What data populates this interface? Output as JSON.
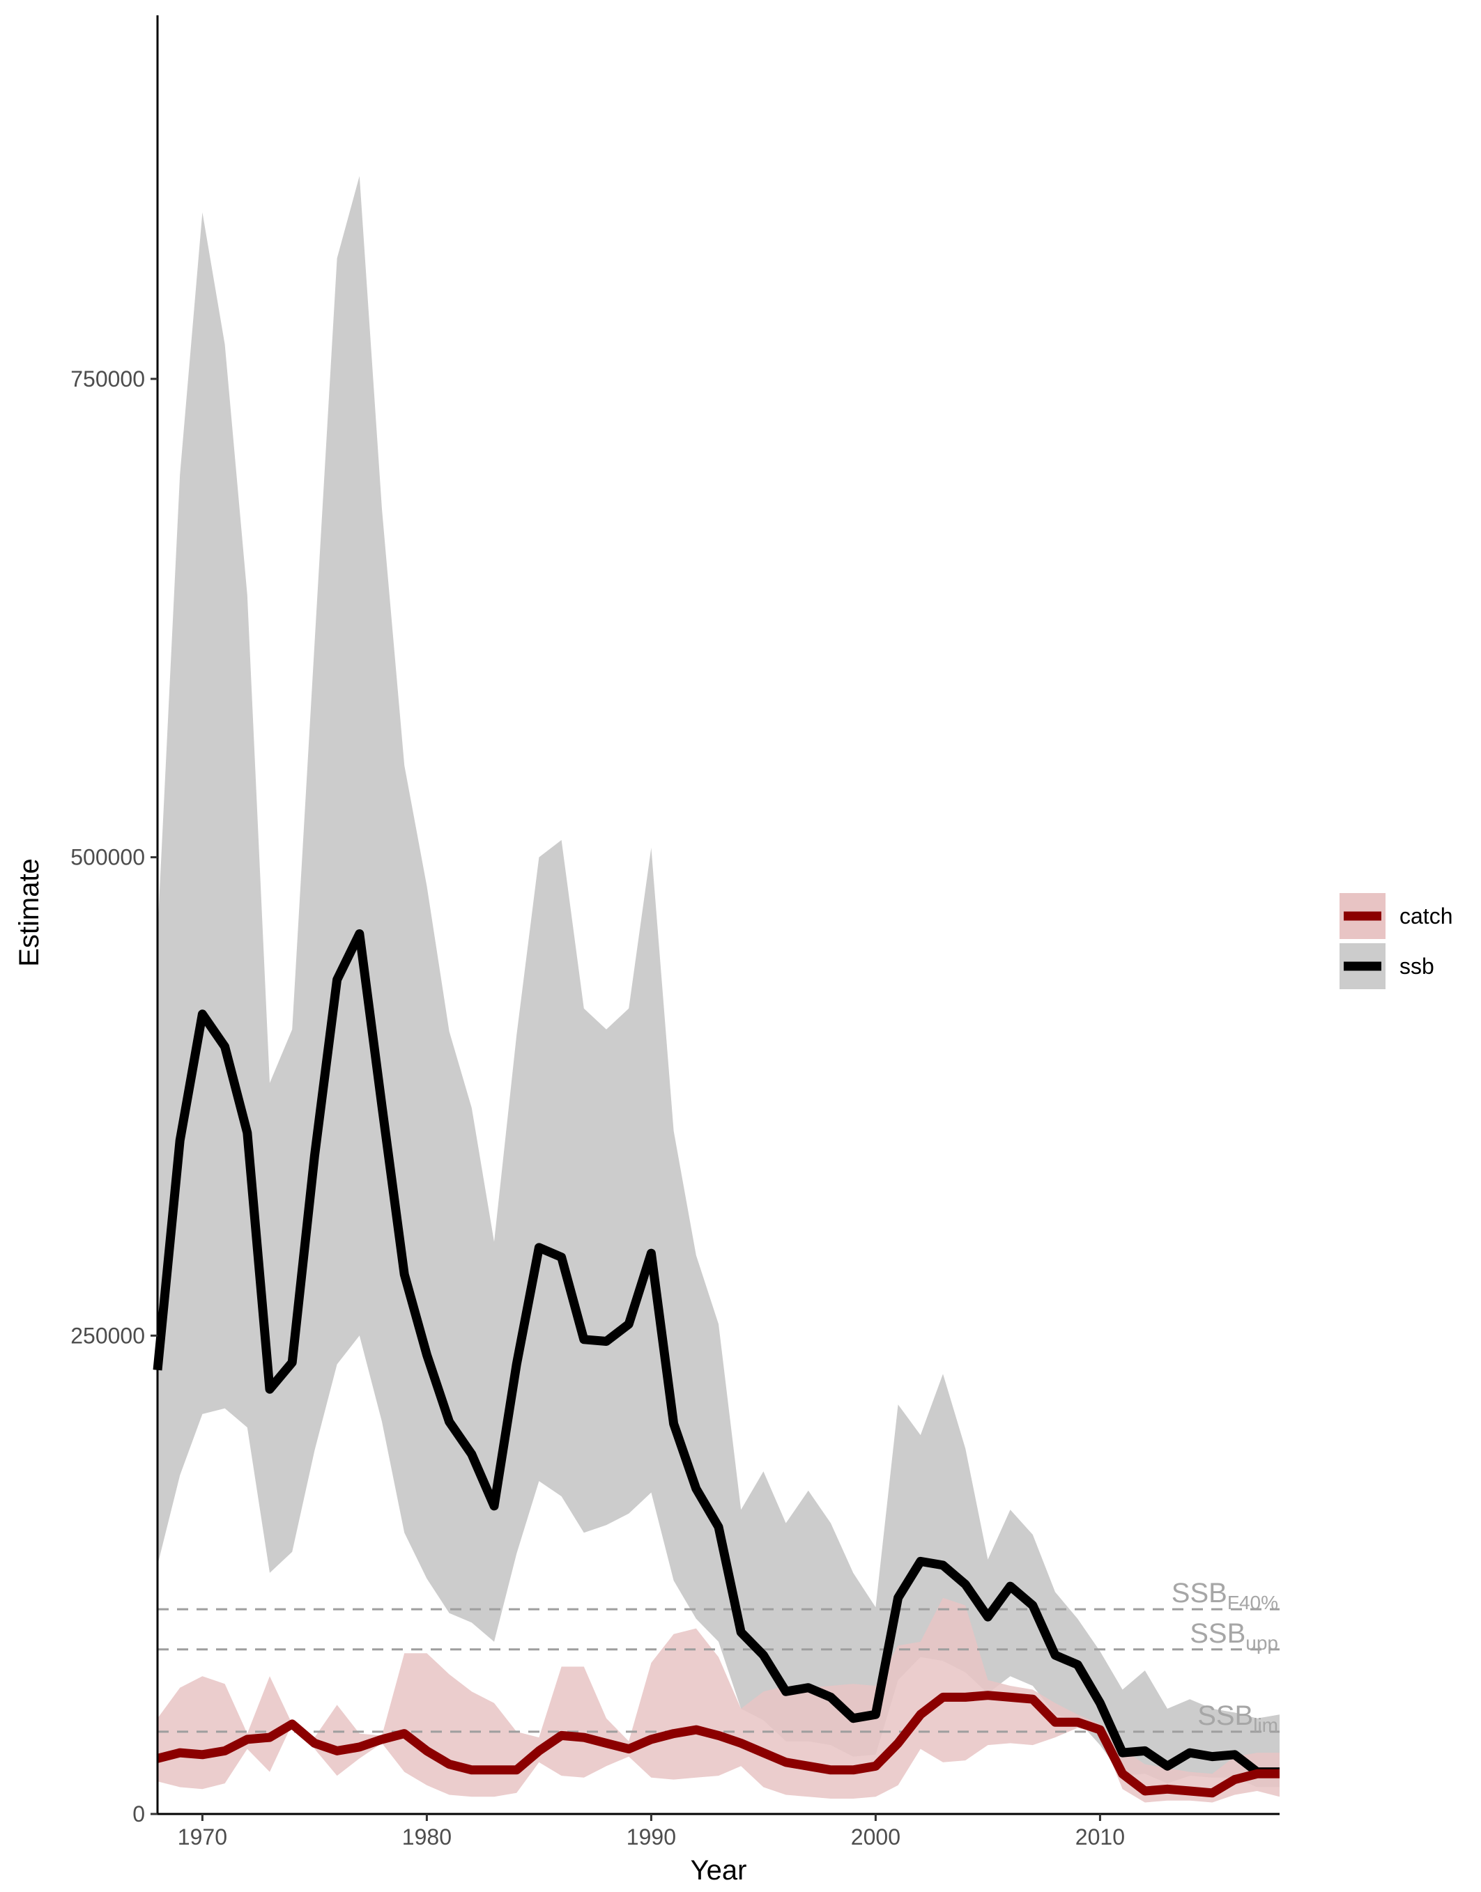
{
  "chart_data": {
    "type": "line",
    "title": "",
    "xlabel": "Year",
    "ylabel": "Estimate",
    "xlim": [
      1968,
      2018
    ],
    "ylim": [
      0,
      940000
    ],
    "xticks": [
      1970,
      1980,
      1990,
      2000,
      2010
    ],
    "yticks": [
      0,
      250000,
      500000,
      750000
    ],
    "grid": false,
    "legend_position": "right",
    "series": [
      {
        "name": "ssb",
        "color": "#000000",
        "band_color": "#cccccc",
        "years": [
          1968,
          1969,
          1970,
          1971,
          1972,
          1973,
          1974,
          1975,
          1976,
          1977,
          1978,
          1979,
          1980,
          1981,
          1982,
          1983,
          1984,
          1985,
          1986,
          1987,
          1988,
          1989,
          1990,
          1991,
          1992,
          1993,
          1994,
          1995,
          1996,
          1997,
          1998,
          1999,
          2000,
          2001,
          2002,
          2003,
          2004,
          2005,
          2006,
          2007,
          2008,
          2009,
          2010,
          2011,
          2012,
          2013,
          2014,
          2015,
          2016,
          2017,
          2018
        ],
        "values": [
          232000,
          352000,
          418000,
          401000,
          356000,
          222000,
          236000,
          344000,
          436000,
          460000,
          370000,
          282000,
          240000,
          205000,
          188000,
          161000,
          235000,
          296000,
          291000,
          248000,
          247000,
          256000,
          293000,
          204000,
          170000,
          150000,
          95000,
          83000,
          64000,
          66000,
          61000,
          50000,
          52000,
          113000,
          132000,
          130000,
          120000,
          103000,
          119000,
          109000,
          83000,
          78000,
          58000,
          32000,
          33000,
          25000,
          32000,
          30000,
          31000,
          22000,
          22000
        ],
        "lower": [
          130000,
          177000,
          209000,
          212000,
          202000,
          126000,
          137000,
          190000,
          235000,
          250000,
          205000,
          147000,
          123000,
          105000,
          100000,
          90000,
          136000,
          174000,
          166000,
          147000,
          151000,
          157000,
          168000,
          122000,
          102000,
          90000,
          55000,
          49000,
          38000,
          38000,
          36000,
          30000,
          31000,
          70000,
          82000,
          80000,
          74000,
          63000,
          72000,
          67000,
          52000,
          49000,
          36000,
          20000,
          21000,
          16000,
          20000,
          19000,
          19000,
          14000,
          14000
        ],
        "upper": [
          460000,
          700000,
          837000,
          768000,
          637000,
          382000,
          410000,
          612000,
          813000,
          856000,
          682000,
          548000,
          485000,
          409000,
          369000,
          299000,
          407000,
          500000,
          509000,
          421000,
          410000,
          421000,
          505000,
          357000,
          292000,
          256000,
          159000,
          179000,
          152000,
          169000,
          152000,
          126000,
          108000,
          214000,
          198000,
          230000,
          191000,
          133000,
          159000,
          146000,
          116000,
          102000,
          85000,
          65000,
          75000,
          55000,
          60000,
          55000,
          53000,
          50000,
          52000
        ]
      },
      {
        "name": "catch",
        "color": "#8b0000",
        "band_color": "#e8c4c4",
        "years": [
          1968,
          1969,
          1970,
          1971,
          1972,
          1973,
          1974,
          1975,
          1976,
          1977,
          1978,
          1979,
          1980,
          1981,
          1982,
          1983,
          1984,
          1985,
          1986,
          1987,
          1988,
          1989,
          1990,
          1991,
          1992,
          1993,
          1994,
          1995,
          1996,
          1997,
          1998,
          1999,
          2000,
          2001,
          2002,
          2003,
          2004,
          2005,
          2006,
          2007,
          2008,
          2009,
          2010,
          2011,
          2012,
          2013,
          2014,
          2015,
          2016,
          2017,
          2018
        ],
        "values": [
          29000,
          32000,
          31000,
          33000,
          39000,
          40000,
          47000,
          37000,
          33000,
          35000,
          39000,
          42000,
          33000,
          26000,
          23000,
          23000,
          23000,
          33000,
          41000,
          40000,
          37000,
          34000,
          39000,
          42000,
          44000,
          41000,
          37000,
          32000,
          27000,
          25000,
          23000,
          23000,
          25000,
          37000,
          52000,
          61000,
          61000,
          62000,
          61000,
          60000,
          48000,
          48000,
          44000,
          21000,
          12000,
          13000,
          12000,
          11000,
          18000,
          21000,
          21000
        ],
        "lower": [
          17000,
          14000,
          13000,
          16000,
          34000,
          22000,
          47000,
          34000,
          20000,
          29000,
          37000,
          22000,
          15000,
          10000,
          9000,
          9000,
          11000,
          27000,
          20000,
          19000,
          25000,
          30000,
          19000,
          18000,
          19000,
          20000,
          25000,
          14000,
          10000,
          9000,
          8000,
          8000,
          9000,
          15000,
          34000,
          27000,
          28000,
          36000,
          37000,
          36000,
          40000,
          45000,
          42000,
          13000,
          6000,
          7000,
          7000,
          6000,
          10000,
          12000,
          9000
        ],
        "upper": [
          50000,
          66000,
          72000,
          68000,
          42000,
          72000,
          47000,
          40000,
          57000,
          42000,
          41000,
          84000,
          84000,
          73000,
          64000,
          58000,
          43000,
          40000,
          77000,
          77000,
          50000,
          38000,
          79000,
          94000,
          97000,
          82000,
          55000,
          64000,
          67000,
          66000,
          67000,
          68000,
          67000,
          88000,
          90000,
          113000,
          109000,
          70000,
          67000,
          65000,
          58000,
          52000,
          47000,
          34000,
          26000,
          24000,
          22000,
          21000,
          30000,
          32000,
          32000
        ]
      }
    ],
    "reference_lines": [
      {
        "value": 107000,
        "label_main": "SSB",
        "label_sub": "F40%"
      },
      {
        "value": 86000,
        "label_main": "SSB",
        "label_sub": "upp"
      },
      {
        "value": 43000,
        "label_main": "SSB",
        "label_sub": "lim"
      }
    ],
    "legend": [
      {
        "label": "catch",
        "series": "catch"
      },
      {
        "label": "ssb",
        "series": "ssb"
      }
    ]
  }
}
